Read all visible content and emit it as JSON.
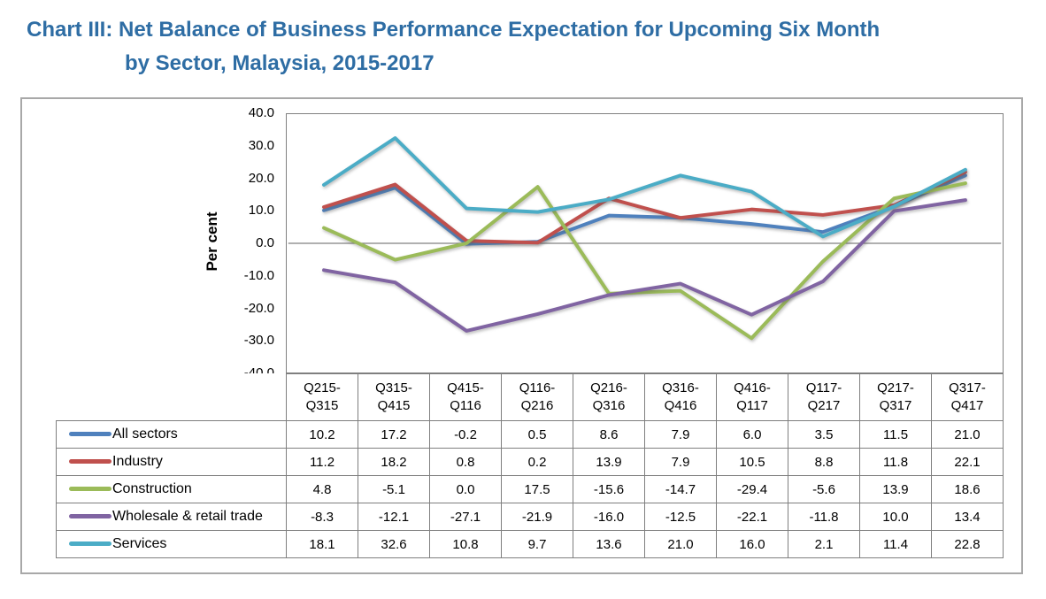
{
  "title": {
    "line1": "Chart III: Net Balance of Business Performance Expectation for Upcoming Six Month",
    "line2": "by Sector, Malaysia, 2015-2017",
    "color": "#2E6DA4"
  },
  "chart_data": {
    "type": "line",
    "title": "",
    "xlabel": "",
    "ylabel": "Per cent",
    "ylim": [
      -40.0,
      40.0
    ],
    "ytick_step": 10.0,
    "grid": false,
    "zero_line_color": "#808080",
    "legend_position": "table-rows-left",
    "categories": [
      "Q215-Q315",
      "Q315-Q415",
      "Q415-Q116",
      "Q116-Q216",
      "Q216-Q316",
      "Q316-Q416",
      "Q416-Q117",
      "Q117-Q217",
      "Q217-Q317",
      "Q317-Q417"
    ],
    "series": [
      {
        "name": "All sectors",
        "color": "#4F81BD",
        "values": [
          10.2,
          17.2,
          -0.2,
          0.5,
          8.6,
          7.9,
          6.0,
          3.5,
          11.5,
          21.0
        ]
      },
      {
        "name": "Industry",
        "color": "#C0504D",
        "values": [
          11.2,
          18.2,
          0.8,
          0.2,
          13.9,
          7.9,
          10.5,
          8.8,
          11.8,
          22.1
        ]
      },
      {
        "name": "Construction",
        "color": "#9BBB59",
        "values": [
          4.8,
          -5.1,
          0.0,
          17.5,
          -15.6,
          -14.7,
          -29.4,
          -5.6,
          13.9,
          18.6
        ]
      },
      {
        "name": "Wholesale & retail trade",
        "color": "#8064A2",
        "values": [
          -8.3,
          -12.1,
          -27.1,
          -21.9,
          -16.0,
          -12.5,
          -22.1,
          -11.8,
          10.0,
          13.4
        ]
      },
      {
        "name": "Services",
        "color": "#4BACC6",
        "values": [
          18.1,
          32.6,
          10.8,
          9.7,
          13.6,
          21.0,
          16.0,
          2.1,
          11.4,
          22.8
        ]
      }
    ]
  }
}
